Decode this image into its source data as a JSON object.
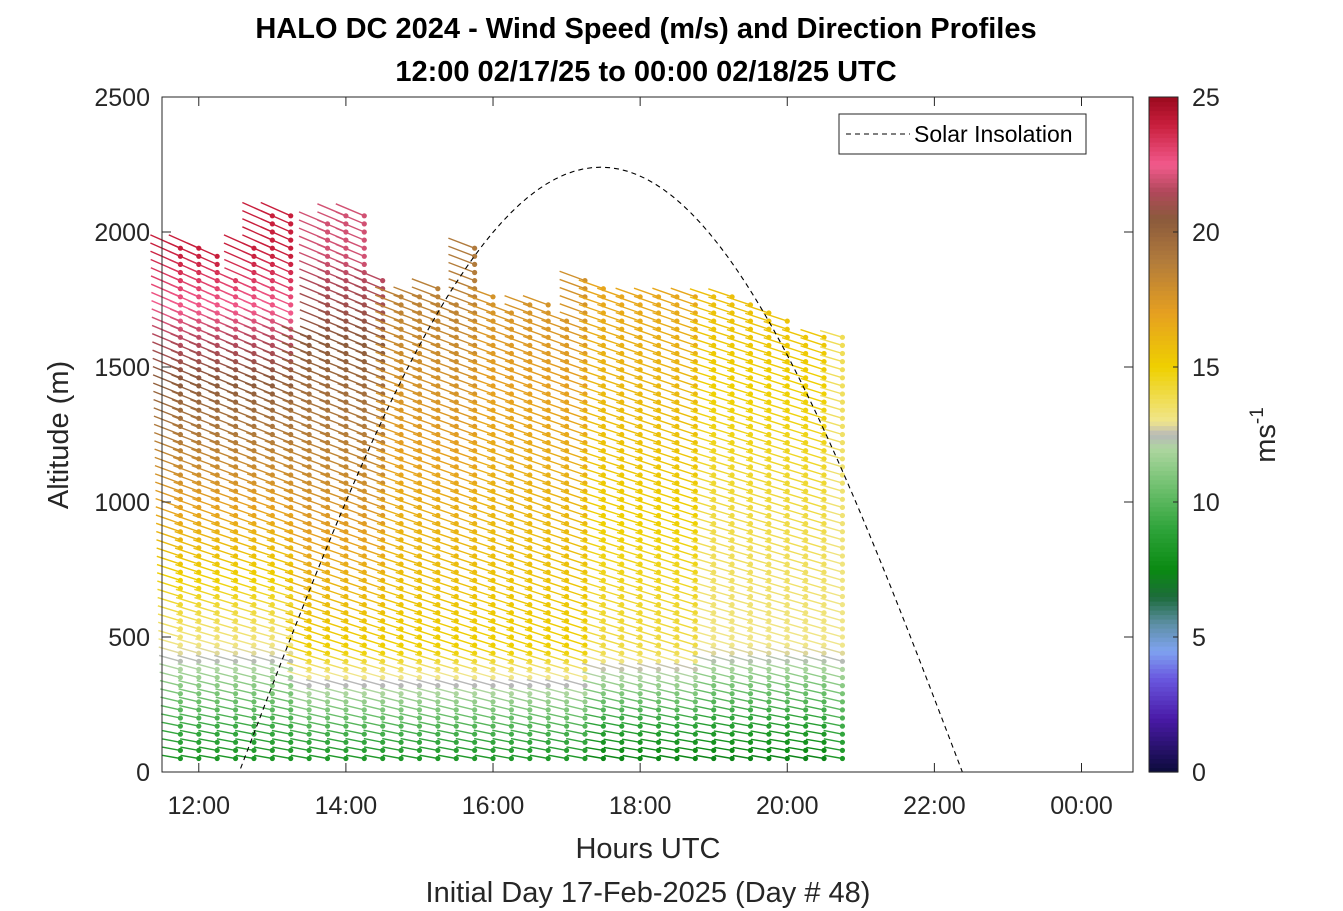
{
  "chart_data": {
    "type": "wind-barb-profile",
    "title": "HALO DC 2024 - Wind Speed (m/s) and Direction Profiles",
    "subtitle": "12:00 02/17/25 to 00:00 02/18/25  UTC",
    "xlabel": "Hours UTC",
    "xlabel2": "Initial Day 17-Feb-2025 (Day # 48)",
    "ylabel": "Altitude (m)",
    "colorbar_label": "ms",
    "colorbar_label_exponent": "-1",
    "xlim_hours": [
      11.5,
      24.7
    ],
    "ylim": [
      0,
      2500
    ],
    "x_ticks": [
      {
        "value": 12,
        "label": "12:00"
      },
      {
        "value": 14,
        "label": "14:00"
      },
      {
        "value": 16,
        "label": "16:00"
      },
      {
        "value": 18,
        "label": "18:00"
      },
      {
        "value": 20,
        "label": "20:00"
      },
      {
        "value": 22,
        "label": "22:00"
      },
      {
        "value": 24,
        "label": "00:00"
      }
    ],
    "y_ticks": [
      {
        "value": 0,
        "label": "0"
      },
      {
        "value": 500,
        "label": "500"
      },
      {
        "value": 1000,
        "label": "1000"
      },
      {
        "value": 1500,
        "label": "1500"
      },
      {
        "value": 2000,
        "label": "2000"
      },
      {
        "value": 2500,
        "label": "2500"
      }
    ],
    "colorbar_ticks": [
      {
        "value": 0,
        "label": "0"
      },
      {
        "value": 5,
        "label": "5"
      },
      {
        "value": 10,
        "label": "10"
      },
      {
        "value": 15,
        "label": "15"
      },
      {
        "value": 20,
        "label": "20"
      },
      {
        "value": 25,
        "label": "25"
      }
    ],
    "colorbar_range": [
      0,
      25
    ],
    "colormap": [
      {
        "v": 0,
        "c": "#0b0b3a"
      },
      {
        "v": 2,
        "c": "#4a1aa8"
      },
      {
        "v": 3.5,
        "c": "#6a5ae0"
      },
      {
        "v": 4.5,
        "c": "#7fa3f0"
      },
      {
        "v": 5.5,
        "c": "#5d8fa5"
      },
      {
        "v": 6.5,
        "c": "#1c6b3a"
      },
      {
        "v": 7.5,
        "c": "#0a8a12"
      },
      {
        "v": 9,
        "c": "#2ea33a"
      },
      {
        "v": 10.5,
        "c": "#6cbf6c"
      },
      {
        "v": 12,
        "c": "#aed6a0"
      },
      {
        "v": 12.5,
        "c": "#b8b8b8"
      },
      {
        "v": 13,
        "c": "#f0e68c"
      },
      {
        "v": 15,
        "c": "#efd000"
      },
      {
        "v": 17,
        "c": "#e6a020"
      },
      {
        "v": 19,
        "c": "#b07a3c"
      },
      {
        "v": 20.5,
        "c": "#8b5a3c"
      },
      {
        "v": 21.5,
        "c": "#b0485a"
      },
      {
        "v": 22.5,
        "c": "#f25a8c"
      },
      {
        "v": 24,
        "c": "#c81e3c"
      },
      {
        "v": 25,
        "c": "#9a0a1e"
      }
    ],
    "profile_times_hours": [
      11.75,
      12.0,
      12.25,
      12.5,
      12.75,
      13.0,
      13.25,
      13.5,
      13.75,
      14.0,
      14.25,
      14.5,
      14.75,
      15.0,
      15.25,
      15.5,
      15.75,
      16.0,
      16.25,
      16.5,
      16.75,
      17.0,
      17.25,
      17.5,
      17.75,
      18.0,
      18.25,
      18.5,
      18.75,
      19.0,
      19.25,
      19.5,
      19.75,
      20.0,
      20.25,
      20.5,
      20.75
    ],
    "profile_altitude_range_m": [
      50,
      1960
    ],
    "profile_altitude_step_m": 30,
    "profile_top_altitudes_m": [
      1960,
      1940,
      1920,
      1830,
      1950,
      2080,
      2060,
      1620,
      2030,
      2060,
      2080,
      1820,
      1780,
      1780,
      1800,
      1740,
      1960,
      1760,
      1720,
      1740,
      1750,
      1680,
      1820,
      1800,
      1780,
      1760,
      1780,
      1780,
      1760,
      1760,
      1760,
      1740,
      1700,
      1680,
      1630,
      1630,
      1620
    ],
    "speed_profile_phases": [
      {
        "from_hour": 11.75,
        "speeds_low_mid_high": [
          8,
          13,
          24
        ]
      },
      {
        "from_hour": 13.5,
        "speeds_low_mid_high": [
          8,
          15,
          22
        ]
      },
      {
        "from_hour": 14.75,
        "speeds_low_mid_high": [
          8,
          15,
          19
        ]
      },
      {
        "from_hour": 16.0,
        "speeds_low_mid_high": [
          8,
          15,
          18
        ]
      },
      {
        "from_hour": 17.5,
        "speeds_low_mid_high": [
          7,
          14,
          17
        ]
      },
      {
        "from_hour": 19.0,
        "speeds_low_mid_high": [
          7,
          13,
          16
        ]
      },
      {
        "from_hour": 20.75,
        "speeds_low_mid_high": [
          8,
          13,
          14
        ]
      }
    ],
    "legend": {
      "label": "Solar Insolation",
      "position": "top-right"
    },
    "solar_insolation": {
      "sunrise_hour": 12.55,
      "sunset_hour": 22.38,
      "peak_altitude_m": 2240,
      "style": "dashed"
    }
  }
}
